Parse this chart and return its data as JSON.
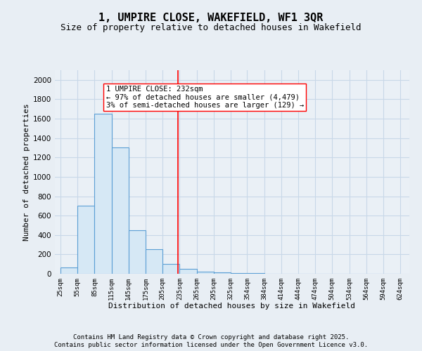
{
  "title": "1, UMPIRE CLOSE, WAKEFIELD, WF1 3QR",
  "subtitle": "Size of property relative to detached houses in Wakefield",
  "xlabel": "Distribution of detached houses by size in Wakefield",
  "ylabel": "Number of detached properties",
  "bar_left_edges": [
    25,
    55,
    85,
    115,
    145,
    175,
    205,
    235,
    265,
    295,
    325,
    354,
    384,
    414,
    444,
    474,
    504,
    534,
    564,
    594
  ],
  "bar_widths": [
    30,
    30,
    30,
    30,
    30,
    30,
    30,
    30,
    30,
    30,
    29,
    30,
    30,
    30,
    30,
    30,
    30,
    30,
    30,
    30
  ],
  "bar_heights": [
    65,
    700,
    1650,
    1300,
    450,
    255,
    100,
    50,
    25,
    15,
    8,
    5,
    3,
    2,
    2,
    1,
    1,
    1,
    0,
    1
  ],
  "bar_color": "#d6e8f5",
  "bar_edge_color": "#5b9fd4",
  "red_line_x": 232,
  "annotation_text": "1 UMPIRE CLOSE: 232sqm\n← 97% of detached houses are smaller (4,479)\n3% of semi-detached houses are larger (129) →",
  "ylim": [
    0,
    2100
  ],
  "xlim": [
    15,
    640
  ],
  "xtick_labels": [
    "25sqm",
    "55sqm",
    "85sqm",
    "115sqm",
    "145sqm",
    "175sqm",
    "205sqm",
    "235sqm",
    "265sqm",
    "295sqm",
    "325sqm",
    "354sqm",
    "384sqm",
    "414sqm",
    "444sqm",
    "474sqm",
    "504sqm",
    "534sqm",
    "564sqm",
    "594sqm",
    "624sqm"
  ],
  "xtick_positions": [
    25,
    55,
    85,
    115,
    145,
    175,
    205,
    235,
    265,
    295,
    325,
    354,
    384,
    414,
    444,
    474,
    504,
    534,
    564,
    594,
    624
  ],
  "footer_line1": "Contains HM Land Registry data © Crown copyright and database right 2025.",
  "footer_line2": "Contains public sector information licensed under the Open Government Licence v3.0.",
  "bg_color": "#e8eef4",
  "grid_color": "#c8d8e8",
  "plot_bg_color": "#eaf0f6",
  "title_fontsize": 11,
  "subtitle_fontsize": 9,
  "annotation_fontsize": 7.5,
  "footer_fontsize": 6.5,
  "ylabel_fontsize": 8,
  "xlabel_fontsize": 8
}
